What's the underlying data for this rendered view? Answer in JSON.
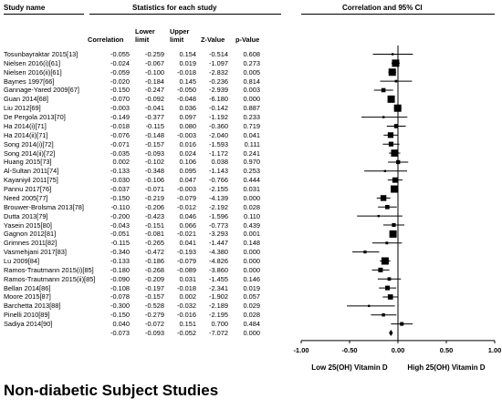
{
  "headers": {
    "study_name": "Study name",
    "stats_group": "Statistics for each study",
    "plot_group": "Correlation and 95% CI",
    "correlation": "Correlation",
    "lower_limit": "Lower limit",
    "upper_limit": "Upper limit",
    "z_value": "Z-Value",
    "p_value": "p-Value"
  },
  "footer_title": "Non-diabetic Subject Studies",
  "chart_data": {
    "type": "table",
    "plot_type": "forest",
    "xlim": [
      -1.0,
      1.0
    ],
    "x_ticks": [
      "-1.00",
      "-0.50",
      "0.00",
      "0.50",
      "1.00"
    ],
    "x_tick_values": [
      -1.0,
      -0.5,
      0.0,
      0.5,
      1.0
    ],
    "left_label": "Low 25(OH) Vitamin D",
    "right_label": "High 25(OH) Vitamin D",
    "studies": [
      {
        "name": "Tosunbayraktar 2015[13]",
        "r": "-0.055",
        "lower": "-0.259",
        "upper": "0.154",
        "z": "-0.514",
        "p": "0.608"
      },
      {
        "name": "Nielsen 2016(i)[61]",
        "r": "-0.024",
        "lower": "-0.067",
        "upper": "0.019",
        "z": "-1.097",
        "p": "0.273"
      },
      {
        "name": "Nielsen 2016(ii)[61]",
        "r": "-0.059",
        "lower": "-0.100",
        "upper": "-0.018",
        "z": "-2.832",
        "p": "0.005"
      },
      {
        "name": "Baynes 1997[66]",
        "r": "-0.020",
        "lower": "-0.184",
        "upper": "0.145",
        "z": "-0.236",
        "p": "0.814"
      },
      {
        "name": "Gannage-Yared 2009[67]",
        "r": "-0.150",
        "lower": "-0.247",
        "upper": "-0.050",
        "z": "-2.939",
        "p": "0.003"
      },
      {
        "name": "Guan 2014[68]",
        "r": "-0.070",
        "lower": "-0.092",
        "upper": "-0.048",
        "z": "-6.180",
        "p": "0.000"
      },
      {
        "name": "Liu 2012[69]",
        "r": "-0.003",
        "lower": "-0.041",
        "upper": "0.036",
        "z": "-0.142",
        "p": "0.887"
      },
      {
        "name": "De Pergola 2013[70]",
        "r": "-0.149",
        "lower": "-0.377",
        "upper": "0.097",
        "z": "-1.192",
        "p": "0.233"
      },
      {
        "name": "Ha 2014(i)[71]",
        "r": "-0.018",
        "lower": "-0.115",
        "upper": "0.080",
        "z": "-0.360",
        "p": "0.719"
      },
      {
        "name": "Ha 2014(ii)[71]",
        "r": "-0.076",
        "lower": "-0.148",
        "upper": "-0.003",
        "z": "-2.040",
        "p": "0.041"
      },
      {
        "name": "Song 2014(i)[72]",
        "r": "-0.071",
        "lower": "-0.157",
        "upper": "0.016",
        "z": "-1.593",
        "p": "0.111"
      },
      {
        "name": "Song 2014(ii)[72]",
        "r": "-0.035",
        "lower": "-0.093",
        "upper": "0.024",
        "z": "-1.172",
        "p": "0.241"
      },
      {
        "name": "Huang 2015[73]",
        "r": "0.002",
        "lower": "-0.102",
        "upper": "0.106",
        "z": "0.038",
        "p": "0.970"
      },
      {
        "name": "Al-Sultan 2011[74]",
        "r": "-0.133",
        "lower": "-0.348",
        "upper": "0.095",
        "z": "-1.143",
        "p": "0.253"
      },
      {
        "name": "Kayaniyil 2011[75]",
        "r": "-0.030",
        "lower": "-0.106",
        "upper": "0.047",
        "z": "-0.766",
        "p": "0.444"
      },
      {
        "name": "Pannu 2017[76]",
        "r": "-0.037",
        "lower": "-0.071",
        "upper": "-0.003",
        "z": "-2.155",
        "p": "0.031"
      },
      {
        "name": "Need 2005[77]",
        "r": "-0.150",
        "lower": "-0.219",
        "upper": "-0.079",
        "z": "-4.139",
        "p": "0.000"
      },
      {
        "name": "Brouwer-Brolsma 2013[78]",
        "r": "-0.110",
        "lower": "-0.206",
        "upper": "-0.012",
        "z": "-2.192",
        "p": "0.028"
      },
      {
        "name": "Dutta 2013[79]",
        "r": "-0.200",
        "lower": "-0.423",
        "upper": "0.046",
        "z": "-1.596",
        "p": "0.110"
      },
      {
        "name": "Yasein 2015[80]",
        "r": "-0.043",
        "lower": "-0.151",
        "upper": "0.066",
        "z": "-0.773",
        "p": "0.439"
      },
      {
        "name": "Gagnon 2012[81]",
        "r": "-0.051",
        "lower": "-0.081",
        "upper": "-0.021",
        "z": "-3.293",
        "p": "0.001"
      },
      {
        "name": "Grimnes 2011[82]",
        "r": "-0.115",
        "lower": "-0.265",
        "upper": "0.041",
        "z": "-1.447",
        "p": "0.148"
      },
      {
        "name": "Vasmehjani 2017[83]",
        "r": "-0.340",
        "lower": "-0.472",
        "upper": "-0.193",
        "z": "-4.380",
        "p": "0.000"
      },
      {
        "name": "Lu 2009[84]",
        "r": "-0.133",
        "lower": "-0.186",
        "upper": "-0.079",
        "z": "-4.826",
        "p": "0.000"
      },
      {
        "name": "Ramos-Trautmann 2015(i)[85]",
        "r": "-0.180",
        "lower": "-0.268",
        "upper": "-0.089",
        "z": "-3.860",
        "p": "0.000"
      },
      {
        "name": "Ramos-Trautmann 2015(ii)[85]",
        "r": "-0.090",
        "lower": "-0.209",
        "upper": "0.031",
        "z": "-1.455",
        "p": "0.146"
      },
      {
        "name": "Bellan 2014[86]",
        "r": "-0.108",
        "lower": "-0.197",
        "upper": "-0.018",
        "z": "-2.341",
        "p": "0.019"
      },
      {
        "name": "Moore 2015[87]",
        "r": "-0.078",
        "lower": "-0.157",
        "upper": "0.002",
        "z": "-1.902",
        "p": "0.057"
      },
      {
        "name": "Barchetta 2013[88]",
        "r": "-0.300",
        "lower": "-0.528",
        "upper": "-0.032",
        "z": "-2.189",
        "p": "0.029"
      },
      {
        "name": "Pinelli 2010[89]",
        "r": "-0.150",
        "lower": "-0.279",
        "upper": "-0.016",
        "z": "-2.195",
        "p": "0.028"
      },
      {
        "name": "Sadiya 2014[90]",
        "r": "0.040",
        "lower": "-0.072",
        "upper": "0.151",
        "z": "0.700",
        "p": "0.484"
      }
    ],
    "pooled": {
      "name": "",
      "r": "-0.073",
      "lower": "-0.093",
      "upper": "-0.052",
      "z": "-7.072",
      "p": "0.000"
    }
  }
}
